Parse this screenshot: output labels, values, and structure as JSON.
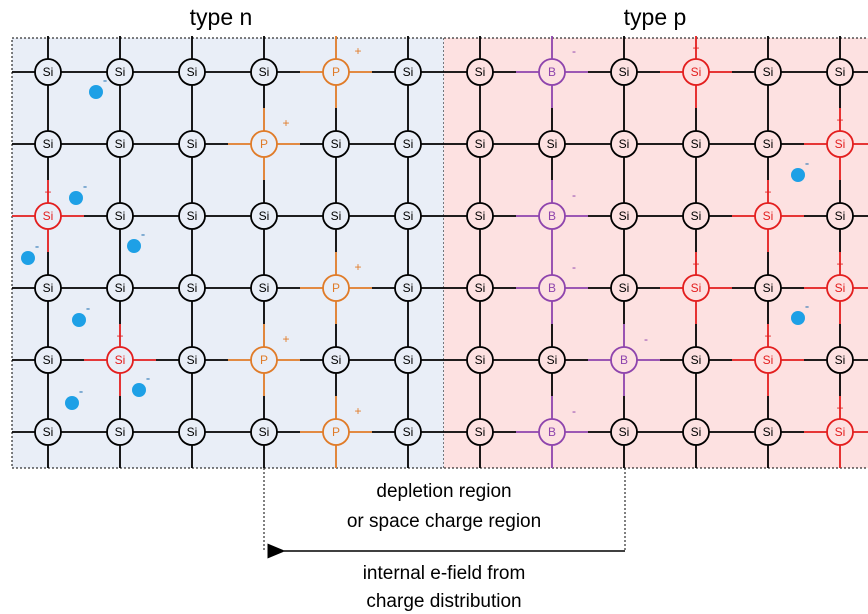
{
  "regions": {
    "n": {
      "label": "type n"
    },
    "p": {
      "label": "type p"
    }
  },
  "lattice": {
    "rows": [
      [
        {
          "label": "Si"
        },
        {
          "label": "Si"
        },
        {
          "label": "Si"
        },
        {
          "label": "Si"
        },
        {
          "label": "P",
          "charge": "+"
        },
        {
          "label": "Si"
        },
        {
          "label": "Si"
        },
        {
          "label": "B",
          "charge": "-"
        },
        {
          "label": "Si"
        },
        {
          "label": "Si",
          "charge": "+"
        },
        {
          "label": "Si"
        },
        {
          "label": "Si"
        }
      ],
      [
        {
          "label": "Si"
        },
        {
          "label": "Si"
        },
        {
          "label": "Si"
        },
        {
          "label": "P",
          "charge": "+"
        },
        {
          "label": "Si"
        },
        {
          "label": "Si"
        },
        {
          "label": "Si"
        },
        {
          "label": "Si"
        },
        {
          "label": "Si"
        },
        {
          "label": "Si"
        },
        {
          "label": "Si"
        },
        {
          "label": "Si",
          "charge": "+"
        }
      ],
      [
        {
          "label": "Si",
          "charge": "+"
        },
        {
          "label": "Si"
        },
        {
          "label": "Si"
        },
        {
          "label": "Si"
        },
        {
          "label": "Si"
        },
        {
          "label": "Si"
        },
        {
          "label": "Si"
        },
        {
          "label": "B",
          "charge": "-"
        },
        {
          "label": "Si"
        },
        {
          "label": "Si"
        },
        {
          "label": "Si",
          "charge": "+"
        },
        {
          "label": "Si"
        }
      ],
      [
        {
          "label": "Si"
        },
        {
          "label": "Si"
        },
        {
          "label": "Si"
        },
        {
          "label": "Si"
        },
        {
          "label": "P",
          "charge": "+"
        },
        {
          "label": "Si"
        },
        {
          "label": "Si"
        },
        {
          "label": "B",
          "charge": "-"
        },
        {
          "label": "Si"
        },
        {
          "label": "Si",
          "charge": "+"
        },
        {
          "label": "Si"
        },
        {
          "label": "Si",
          "charge": "+"
        }
      ],
      [
        {
          "label": "Si"
        },
        {
          "label": "Si",
          "charge": "+"
        },
        {
          "label": "Si"
        },
        {
          "label": "P",
          "charge": "+"
        },
        {
          "label": "Si"
        },
        {
          "label": "Si"
        },
        {
          "label": "Si"
        },
        {
          "label": "Si"
        },
        {
          "label": "B",
          "charge": "-"
        },
        {
          "label": "Si"
        },
        {
          "label": "Si",
          "charge": "+"
        },
        {
          "label": "Si"
        }
      ],
      [
        {
          "label": "Si"
        },
        {
          "label": "Si"
        },
        {
          "label": "Si"
        },
        {
          "label": "Si"
        },
        {
          "label": "P",
          "charge": "+"
        },
        {
          "label": "Si"
        },
        {
          "label": "Si"
        },
        {
          "label": "B",
          "charge": "-"
        },
        {
          "label": "Si"
        },
        {
          "label": "Si"
        },
        {
          "label": "Si"
        },
        {
          "label": "Si",
          "charge": "+"
        }
      ]
    ]
  },
  "electrons": [
    "-",
    "-",
    "-",
    "-",
    "-",
    "-",
    "-",
    "-",
    "-"
  ],
  "annotations": {
    "depletion": [
      "depletion region",
      "or space charge region"
    ],
    "field": [
      "internal e-field from",
      "charge distribution"
    ]
  }
}
